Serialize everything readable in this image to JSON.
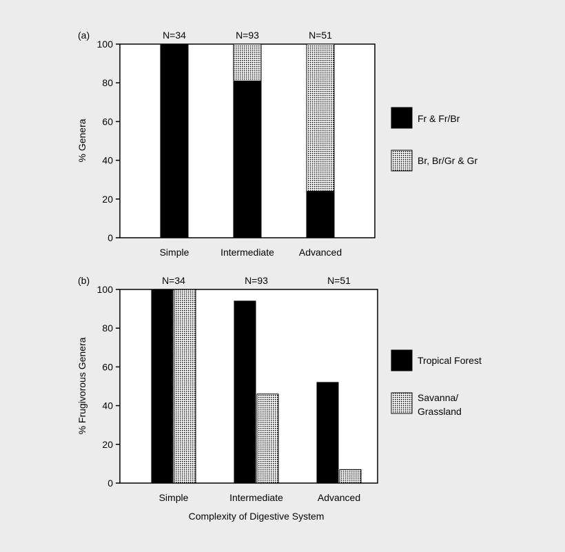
{
  "colors": {
    "background": "#ececec",
    "plot_bg": "#ffffff",
    "solid": "#000000",
    "dotted_fg": "#000000",
    "dotted_bg": "#ffffff"
  },
  "chart_data": [
    {
      "panel_label": "(a)",
      "type": "bar",
      "stacked": true,
      "categories": [
        "Simple",
        "Intermediate",
        "Advanced"
      ],
      "n_labels": [
        "N=34",
        "N=93",
        "N=51"
      ],
      "series": [
        {
          "name": "Fr & Fr/Br",
          "pattern": "solid",
          "values": [
            100,
            81,
            24
          ]
        },
        {
          "name": "Br, Br/Gr & Gr",
          "pattern": "dotted",
          "values": [
            0,
            19,
            76
          ]
        }
      ],
      "ylabel": "% Genera",
      "xlabel": "",
      "ylim": [
        0,
        100
      ],
      "yticks": [
        0,
        20,
        40,
        60,
        80,
        100
      ],
      "legend": [
        "Fr & Fr/Br",
        "Br, Br/Gr & Gr"
      ],
      "legend_position": "right"
    },
    {
      "panel_label": "(b)",
      "type": "bar",
      "stacked": false,
      "categories": [
        "Simple",
        "Intermediate",
        "Advanced"
      ],
      "n_labels": [
        "N=34",
        "N=93",
        "N=51"
      ],
      "series": [
        {
          "name": "Tropical Forest",
          "pattern": "solid",
          "values": [
            100,
            94,
            52
          ]
        },
        {
          "name": "Savanna/ Grassland",
          "pattern": "dotted",
          "values": [
            100,
            46,
            7
          ]
        }
      ],
      "ylabel": "% Frugivorous Genera",
      "xlabel": "Complexity of Digestive System",
      "ylim": [
        0,
        100
      ],
      "yticks": [
        0,
        20,
        40,
        60,
        80,
        100
      ],
      "legend": [
        "Tropical Forest",
        "Savanna/",
        "Grassland"
      ],
      "legend_position": "right"
    }
  ]
}
